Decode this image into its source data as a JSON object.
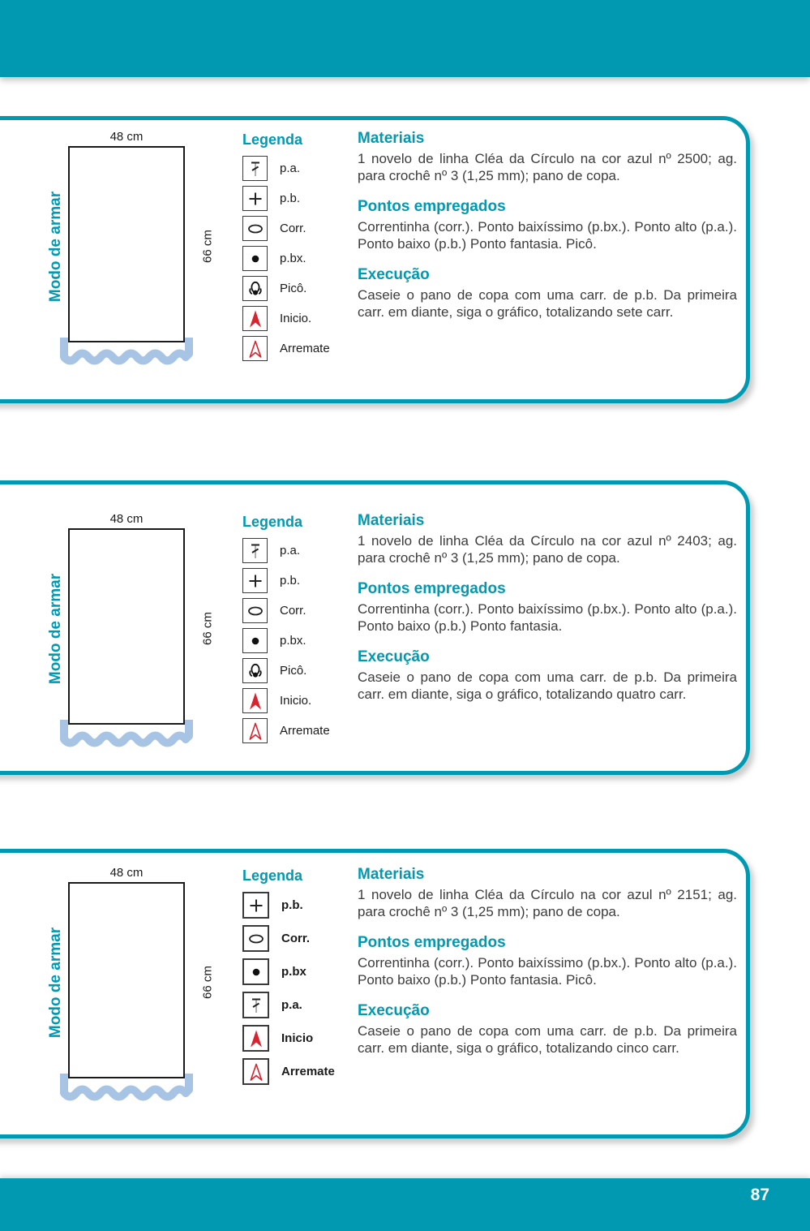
{
  "page": {
    "number": "87"
  },
  "colors": {
    "teal_accent": "#0099b2",
    "wave_blue": "#a7c4e4",
    "arrow_red": "#d9232e",
    "body_text": "#3c3c3c"
  },
  "panels": [
    {
      "diagram": {
        "width_label": "48 cm",
        "height_label": "66 cm",
        "side_label": "Modo de armar"
      },
      "legend": {
        "title": "Legenda",
        "items": [
          {
            "icon": "pa-icon",
            "label": "p.a."
          },
          {
            "icon": "pb-icon",
            "label": "p.b."
          },
          {
            "icon": "corr-icon",
            "label": "Corr."
          },
          {
            "icon": "pbx-icon",
            "label": "p.bx."
          },
          {
            "icon": "pico-icon",
            "label": "Picô."
          },
          {
            "icon": "inicio-icon",
            "label": "Inicio."
          },
          {
            "icon": "arremate-icon",
            "label": "Arremate"
          }
        ]
      },
      "sections": [
        {
          "title": "Materiais",
          "body": "1 novelo de linha Cléa da Círculo na cor azul nº 2500; ag. para crochê nº 3 (1,25 mm); pano de copa."
        },
        {
          "title": "Pontos empregados",
          "body": "Correntinha (corr.). Ponto baixíssimo (p.bx.). Ponto alto (p.a.). Ponto baixo (p.b.) Ponto fantasia. Picô."
        },
        {
          "title": "Execução",
          "body": "Caseie o pano de copa com uma carr. de p.b. Da primeira carr. em diante, siga o gráfico, totalizando sete carr."
        }
      ]
    },
    {
      "diagram": {
        "width_label": "48 cm",
        "height_label": "66 cm",
        "side_label": "Modo de armar"
      },
      "legend": {
        "title": "Legenda",
        "items": [
          {
            "icon": "pa-icon",
            "label": "p.a."
          },
          {
            "icon": "pb-icon",
            "label": "p.b."
          },
          {
            "icon": "corr-icon",
            "label": "Corr."
          },
          {
            "icon": "pbx-icon",
            "label": "p.bx."
          },
          {
            "icon": "pico-icon",
            "label": "Picô."
          },
          {
            "icon": "inicio-icon",
            "label": "Inicio."
          },
          {
            "icon": "arremate-icon",
            "label": "Arremate"
          }
        ]
      },
      "sections": [
        {
          "title": "Materiais",
          "body": "1 novelo de linha Cléa da Círculo na cor azul nº 2403; ag. para crochê nº 3 (1,25 mm); pano de copa."
        },
        {
          "title": "Pontos empregados",
          "body": "Correntinha (corr.). Ponto baixíssimo (p.bx.). Ponto alto (p.a.). Ponto baixo (p.b.) Ponto fantasia."
        },
        {
          "title": "Execução",
          "body": "Caseie o pano de copa com uma carr. de p.b. Da primeira carr. em diante, siga o gráfico, totalizando quatro carr."
        }
      ]
    },
    {
      "diagram": {
        "width_label": "48 cm",
        "height_label": "66 cm",
        "side_label": "Modo de armar"
      },
      "legend": {
        "title": "Legenda",
        "items": [
          {
            "icon": "pb-icon",
            "label": "p.b."
          },
          {
            "icon": "corr-icon",
            "label": "Corr."
          },
          {
            "icon": "pbx-icon",
            "label": "p.bx"
          },
          {
            "icon": "pa-icon",
            "label": "p.a."
          },
          {
            "icon": "inicio-icon",
            "label": "Inicio"
          },
          {
            "icon": "arremate-icon",
            "label": "Arremate"
          }
        ]
      },
      "sections": [
        {
          "title": "Materiais",
          "body": "1 novelo de linha Cléa da Círculo na cor azul nº 2151; ag. para crochê nº 3 (1,25 mm); pano de copa."
        },
        {
          "title": "Pontos empregados",
          "body": "Correntinha (corr.). Ponto baixíssimo (p.bx.). Ponto alto (p.a.). Ponto baixo (p.b.) Ponto fantasia. Picô."
        },
        {
          "title": "Execução",
          "body": "Caseie o pano de copa com uma carr. de p.b. Da primeira carr. em diante, siga o gráfico, totalizando cinco carr."
        }
      ]
    }
  ]
}
